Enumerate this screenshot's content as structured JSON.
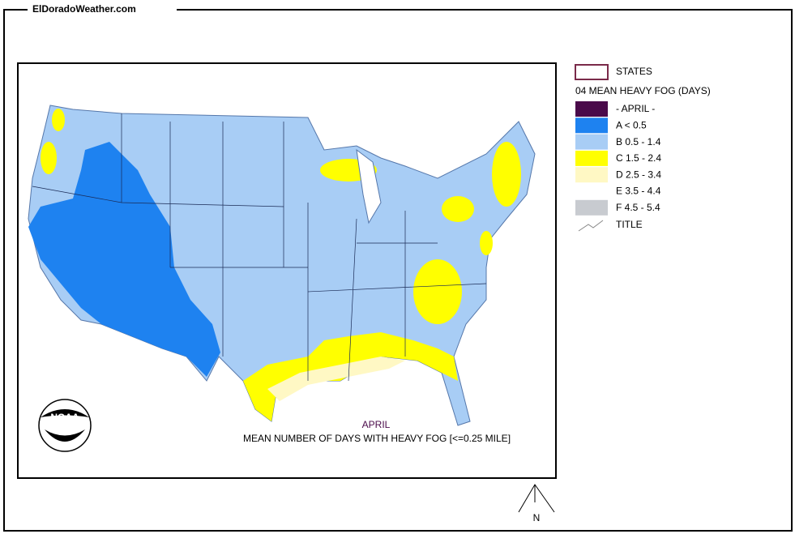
{
  "header": {
    "title": "ElDoradoWeather.com"
  },
  "legend": {
    "states": "STATES",
    "heading": "04 MEAN HEAVY FOG (DAYS)",
    "items": [
      {
        "label": "- APRIL -",
        "color": "#4a0a4a"
      },
      {
        "label": "A < 0.5",
        "color": "#1e82f0"
      },
      {
        "label": "B 0.5 - 1.4",
        "color": "#a8cdf5"
      },
      {
        "label": "C 1.5 - 2.4",
        "color": "#ffff00"
      },
      {
        "label": "D 2.5 - 3.4",
        "color": "#fff8c4"
      },
      {
        "label": "E 3.5 - 4.4",
        "color": "#ffffff"
      },
      {
        "label": "F 4.5 - 5.4",
        "color": "#c8cbd0"
      }
    ],
    "title_item": "TITLE"
  },
  "map": {
    "logo": "NOAA",
    "month": "APRIL",
    "caption": "MEAN NUMBER OF DAYS WITH HEAVY FOG [<=0.25 MILE]",
    "north": "N"
  }
}
